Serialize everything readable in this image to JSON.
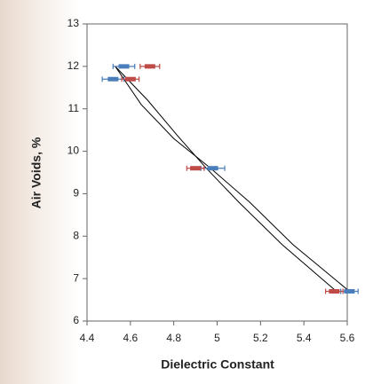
{
  "chart_data": {
    "type": "scatter",
    "x_label": "Dielectric Constant",
    "y_label": "Air Voids, %",
    "xlim": [
      4.4,
      5.6
    ],
    "xticks": [
      4.4,
      4.6,
      4.8,
      5,
      5.2,
      5.4,
      5.6
    ],
    "ylim": [
      6,
      13
    ],
    "yticks": [
      6,
      7,
      8,
      9,
      10,
      11,
      12,
      13
    ],
    "series": [
      {
        "color": "#4a7ebb",
        "x": [
          4.57,
          4.52,
          4.98,
          5.61
        ],
        "values": [
          12.0,
          11.7,
          9.6,
          6.7
        ],
        "xerr": [
          0.05,
          0.05,
          0.055,
          0.04
        ]
      },
      {
        "color": "#be4b48",
        "x": [
          4.69,
          4.6,
          4.9,
          5.54
        ],
        "values": [
          12.0,
          11.7,
          9.6,
          6.7
        ],
        "xerr": [
          0.045,
          0.04,
          0.04,
          0.04
        ]
      }
    ],
    "lines": [
      {
        "color": "#000000",
        "x": [
          4.53,
          4.65,
          4.8,
          4.97,
          5.15,
          5.35,
          5.61
        ],
        "values": [
          12.0,
          11.1,
          10.3,
          9.6,
          8.8,
          7.8,
          6.7
        ]
      },
      {
        "color": "#000000",
        "x": [
          4.53,
          4.68,
          4.82,
          4.95,
          5.1,
          5.3,
          5.55
        ],
        "values": [
          12.0,
          11.2,
          10.35,
          9.6,
          8.8,
          7.8,
          6.7
        ]
      }
    ]
  }
}
